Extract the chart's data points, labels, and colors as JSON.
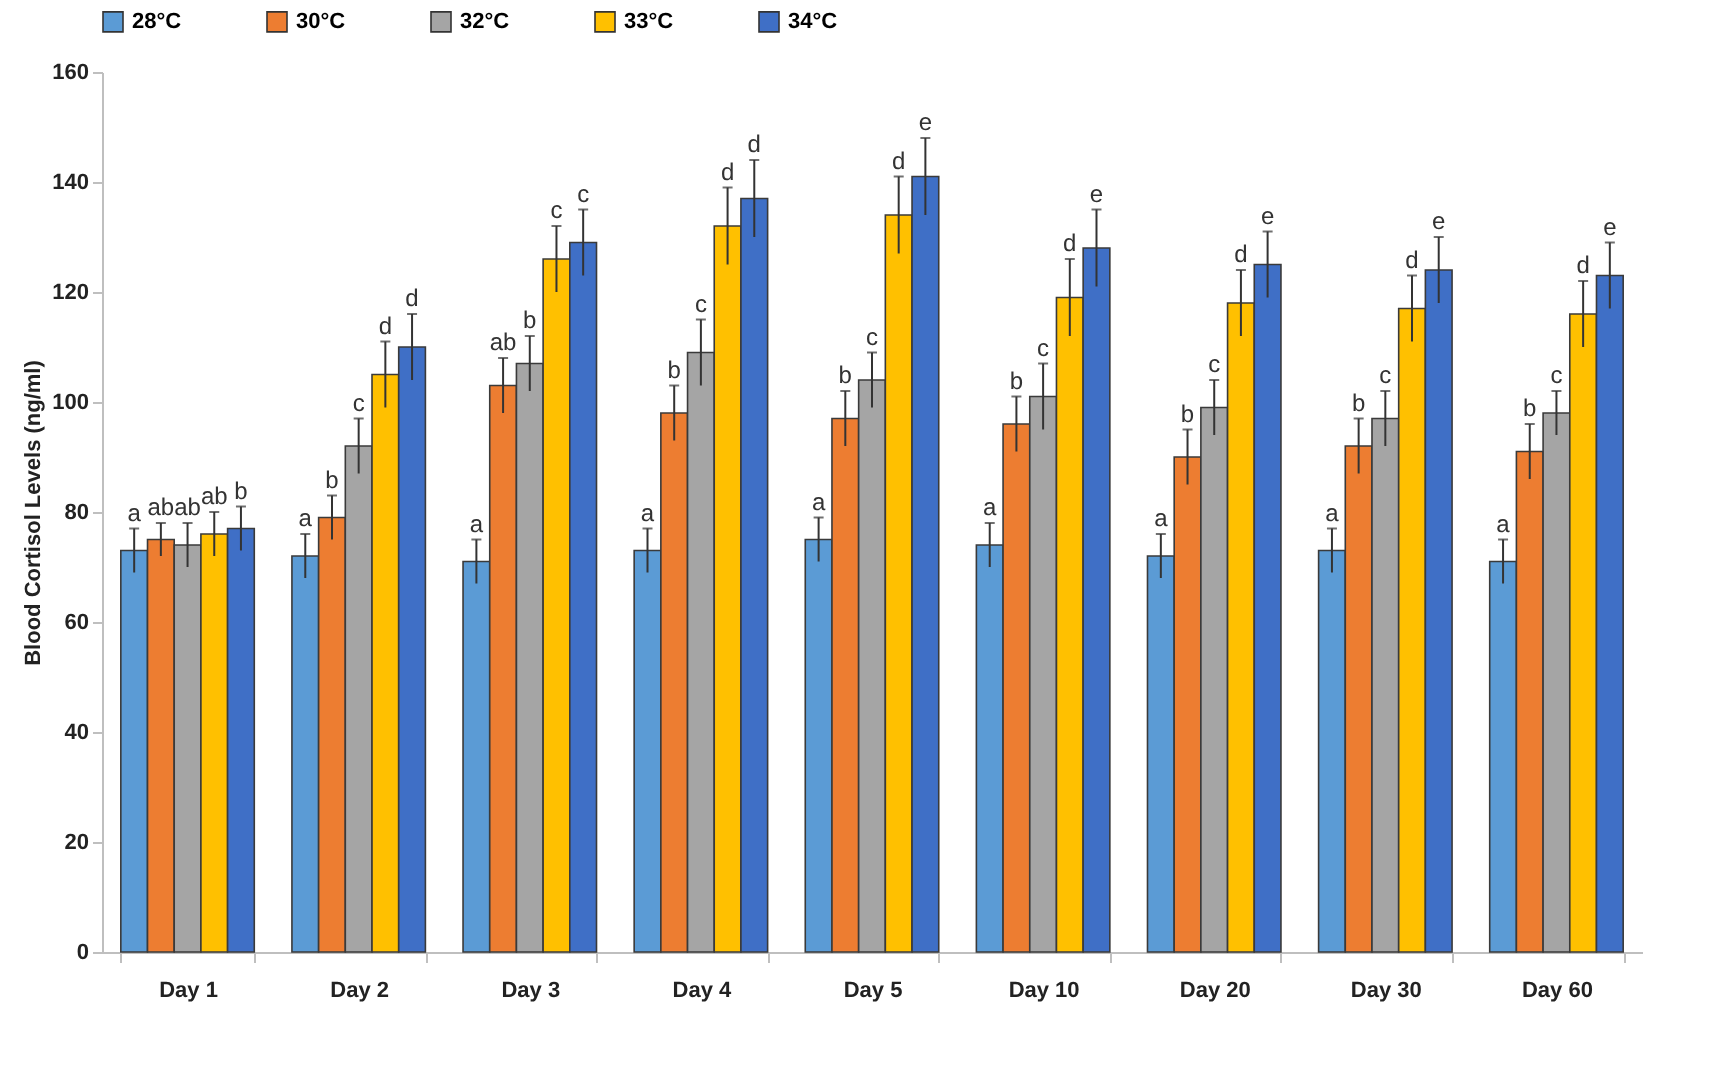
{
  "chart_data": {
    "type": "bar",
    "ylabel": "Blood Cortisol Levels (ng/ml)",
    "categories": [
      "Day 1",
      "Day 2",
      "Day 3",
      "Day 4",
      "Day 5",
      "Day 10",
      "Day 20",
      "Day 30",
      "Day 60"
    ],
    "series": [
      {
        "name": "28°C",
        "color": "#5b9bd5",
        "values": [
          73,
          72,
          71,
          73,
          75,
          74,
          72,
          73,
          71
        ],
        "errors": [
          4,
          4,
          4,
          4,
          4,
          4,
          4,
          4,
          4
        ],
        "value_labels": [
          "a",
          "a",
          "a",
          "a",
          "a",
          "a",
          "a",
          "a",
          "a"
        ]
      },
      {
        "name": "30°C",
        "color": "#ed7d31",
        "values": [
          75,
          79,
          103,
          98,
          97,
          96,
          90,
          92,
          91
        ],
        "errors": [
          3,
          4,
          5,
          5,
          5,
          5,
          5,
          5,
          5
        ],
        "value_labels": [
          "ab",
          "b",
          "ab",
          "b",
          "b",
          "b",
          "b",
          "b",
          "b"
        ]
      },
      {
        "name": "32°C",
        "color": "#a5a5a5",
        "values": [
          74,
          92,
          107,
          109,
          104,
          101,
          99,
          97,
          98
        ],
        "errors": [
          4,
          5,
          5,
          6,
          5,
          6,
          5,
          5,
          4
        ],
        "value_labels": [
          "ab",
          "c",
          "b",
          "c",
          "c",
          "c",
          "c",
          "c",
          "c"
        ]
      },
      {
        "name": "33°C",
        "color": "#ffc000",
        "values": [
          76,
          105,
          126,
          132,
          134,
          119,
          118,
          117,
          116
        ],
        "errors": [
          4,
          6,
          6,
          7,
          7,
          7,
          6,
          6,
          6
        ],
        "value_labels": [
          "ab",
          "d",
          "c",
          "d",
          "d",
          "d",
          "d",
          "d",
          "d"
        ]
      },
      {
        "name": "34°C",
        "color": "#3f6fc6",
        "values": [
          77,
          110,
          129,
          137,
          141,
          128,
          125,
          124,
          123
        ],
        "errors": [
          4,
          6,
          6,
          7,
          7,
          7,
          6,
          6,
          6
        ],
        "value_labels": [
          "b",
          "d",
          "c",
          "d",
          "e",
          "e",
          "e",
          "e",
          "e"
        ]
      }
    ],
    "ylim": [
      0,
      160
    ],
    "yticks": [
      0,
      20,
      40,
      60,
      80,
      100,
      120,
      140,
      160
    ],
    "grid": false,
    "legend": "top"
  }
}
